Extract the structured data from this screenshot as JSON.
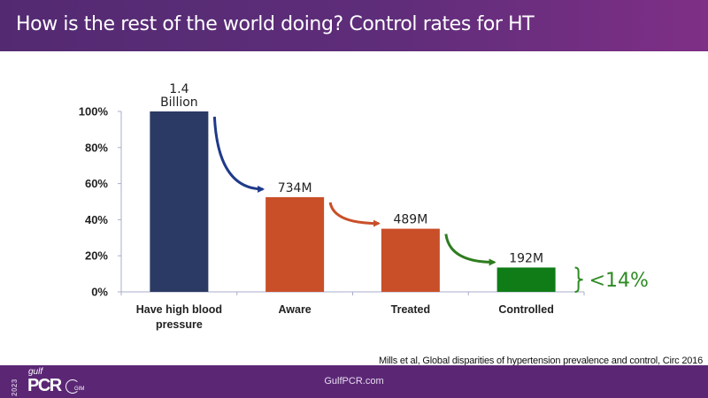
{
  "header": {
    "title": "How is  the rest of the world doing? Control rates for HT"
  },
  "chart_data": {
    "type": "bar",
    "title": "",
    "xlabel": "",
    "ylabel": "",
    "ylim": [
      0,
      100
    ],
    "yticks": [
      "0%",
      "20%",
      "40%",
      "60%",
      "80%",
      "100%"
    ],
    "ytick_values": [
      0,
      20,
      40,
      60,
      80,
      100
    ],
    "grid": false,
    "categories": [
      "Have high blood pressure",
      "Aware",
      "Treated",
      "Controlled"
    ],
    "category_lines": [
      [
        "Have high blood",
        "pressure"
      ],
      [
        "Aware"
      ],
      [
        "Treated"
      ],
      [
        "Controlled"
      ]
    ],
    "values": [
      100,
      52.5,
      35,
      13.5
    ],
    "data_labels": [
      [
        "1.4",
        "Billion"
      ],
      [
        "734M"
      ],
      [
        "489M"
      ],
      [
        "192M"
      ]
    ],
    "colors": [
      "#2b3a64",
      "#c94f28",
      "#c94f28",
      "#0f7c17"
    ],
    "arrow_colors": [
      "#1f3a8a",
      "#c94f28",
      "#2e7d1f"
    ],
    "annotation": {
      "text": "<14%",
      "color": "#2e8b23"
    }
  },
  "citation": "Mills et al, Global disparities of hypertension prevalence and control, Circ 2016",
  "footer": {
    "site": "GulfPCR.com",
    "logo": {
      "year": "2023",
      "gulf": "gulf",
      "pcr": "PCR",
      "gim": "GIM"
    }
  }
}
